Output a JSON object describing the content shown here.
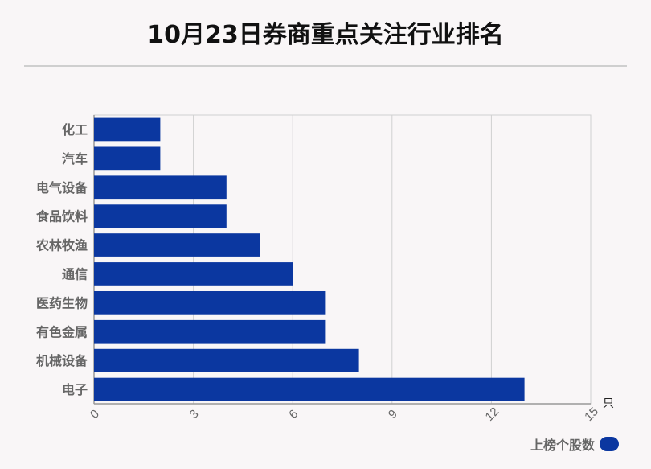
{
  "title": "10月23日券商重点关注行业排名",
  "colors": {
    "bar": "#0b37a0",
    "grid": "#d0d0d0",
    "axis": "#999999"
  },
  "chart_data": {
    "type": "bar",
    "orientation": "horizontal",
    "categories": [
      "化工",
      "汽车",
      "电气设备",
      "食品饮料",
      "农林牧渔",
      "通信",
      "医药生物",
      "有色金属",
      "机械设备",
      "电子"
    ],
    "series": [
      {
        "name": "上榜个股数",
        "values": [
          2,
          2,
          4,
          4,
          5,
          6,
          7,
          7,
          8,
          13
        ]
      }
    ],
    "xlim": [
      0,
      15
    ],
    "xticks": [
      "0",
      "3",
      "6",
      "9",
      "12",
      "15"
    ],
    "xunit": "只",
    "grid": true,
    "legend_position": "bottom-right"
  }
}
